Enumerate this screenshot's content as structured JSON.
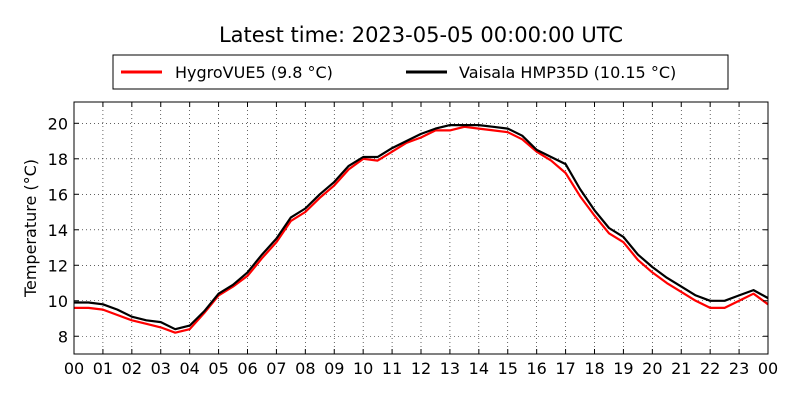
{
  "chart_data": {
    "type": "line",
    "title": "Latest time: 2023-05-05 00:00:00 UTC",
    "xlabel": "",
    "ylabel": "Temperature (°C)",
    "xlim": [
      0,
      24
    ],
    "ylim": [
      7,
      21.2
    ],
    "x_ticks": [
      "00",
      "01",
      "02",
      "03",
      "04",
      "05",
      "06",
      "07",
      "08",
      "09",
      "10",
      "11",
      "12",
      "13",
      "14",
      "15",
      "16",
      "17",
      "18",
      "19",
      "20",
      "21",
      "22",
      "23",
      "00"
    ],
    "y_ticks": [
      8,
      10,
      12,
      14,
      16,
      18,
      20
    ],
    "grid": true,
    "legend_position": "top-center",
    "series": [
      {
        "name": "HygroVUE5 (9.8 °C)",
        "color": "#ff0000",
        "x": [
          0,
          0.5,
          1,
          1.5,
          2,
          2.5,
          3,
          3.5,
          4,
          4.5,
          5,
          5.5,
          6,
          6.5,
          7,
          7.5,
          8,
          8.5,
          9,
          9.5,
          10,
          10.5,
          11,
          11.5,
          12,
          12.5,
          13,
          13.5,
          14,
          14.5,
          15,
          15.5,
          16,
          16.5,
          17,
          17.5,
          18,
          18.5,
          19,
          19.5,
          20,
          20.5,
          21,
          21.5,
          22,
          22.5,
          23,
          23.5,
          24
        ],
        "values": [
          9.6,
          9.6,
          9.5,
          9.2,
          8.9,
          8.7,
          8.5,
          8.2,
          8.4,
          9.3,
          10.3,
          10.8,
          11.4,
          12.4,
          13.3,
          14.5,
          15.0,
          15.8,
          16.5,
          17.4,
          18.0,
          17.9,
          18.4,
          18.9,
          19.2,
          19.6,
          19.6,
          19.8,
          19.7,
          19.6,
          19.5,
          19.1,
          18.4,
          17.9,
          17.2,
          15.9,
          14.8,
          13.8,
          13.3,
          12.3,
          11.6,
          11.0,
          10.5,
          10.0,
          9.6,
          9.6,
          10.0,
          10.4,
          9.8
        ]
      },
      {
        "name": "Vaisala HMP35D (10.15 °C)",
        "color": "#000000",
        "x": [
          0,
          0.5,
          1,
          1.5,
          2,
          2.5,
          3,
          3.5,
          4,
          4.5,
          5,
          5.5,
          6,
          6.5,
          7,
          7.5,
          8,
          8.5,
          9,
          9.5,
          10,
          10.5,
          11,
          11.5,
          12,
          12.5,
          13,
          13.5,
          14,
          14.5,
          15,
          15.5,
          16,
          16.5,
          17,
          17.5,
          18,
          18.5,
          19,
          19.5,
          20,
          20.5,
          21,
          21.5,
          22,
          22.5,
          23,
          23.5,
          24
        ],
        "values": [
          9.9,
          9.9,
          9.8,
          9.5,
          9.1,
          8.9,
          8.8,
          8.4,
          8.6,
          9.4,
          10.4,
          10.9,
          11.6,
          12.6,
          13.5,
          14.7,
          15.2,
          16.0,
          16.7,
          17.6,
          18.1,
          18.1,
          18.6,
          19.0,
          19.4,
          19.7,
          19.9,
          19.9,
          19.9,
          19.8,
          19.7,
          19.3,
          18.5,
          18.1,
          17.7,
          16.3,
          15.1,
          14.1,
          13.6,
          12.6,
          11.9,
          11.3,
          10.8,
          10.3,
          10.0,
          10.0,
          10.3,
          10.6,
          10.15
        ]
      }
    ]
  }
}
